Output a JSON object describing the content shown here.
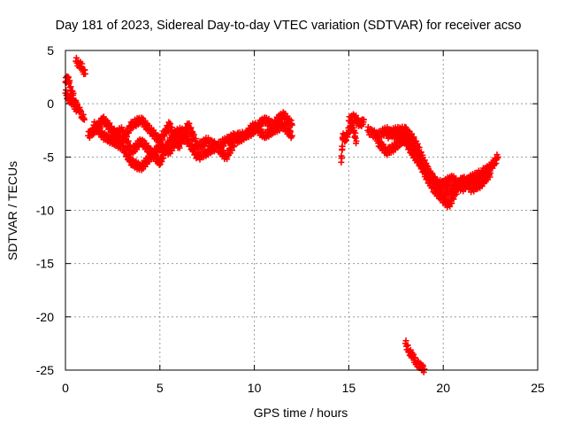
{
  "chart_data": {
    "type": "scatter",
    "title": "Day 181 of 2023, Sidereal Day-to-day VTEC variation (SDTVAR) for receiver acso",
    "xlabel": "GPS time / hours",
    "ylabel": "SDTVAR / TECUs",
    "xlim": [
      0,
      25
    ],
    "ylim": [
      -25,
      5
    ],
    "xticks": [
      0,
      5,
      10,
      15,
      20,
      25
    ],
    "yticks": [
      5,
      0,
      -5,
      -10,
      -15,
      -20,
      -25
    ],
    "grid": true,
    "marker": "+",
    "series": [
      {
        "name": "SDTVAR",
        "color": "#ff0000",
        "segments": [
          {
            "x": [
              0.0,
              0.1,
              0.2,
              0.3,
              0.4,
              0.5,
              0.6,
              0.7,
              0.8,
              0.9,
              1.0
            ],
            "y": [
              2.0,
              2.5,
              2.0,
              1.2,
              0.8,
              0.3,
              -0.2,
              -0.5,
              -0.8,
              -1.2,
              -1.5
            ]
          },
          {
            "x": [
              0.0,
              0.2,
              0.4,
              0.6
            ],
            "y": [
              1.0,
              0.5,
              0.0,
              -0.5
            ]
          },
          {
            "x": [
              0.55,
              0.7,
              0.85,
              0.95,
              1.05
            ],
            "y": [
              4.0,
              3.8,
              3.5,
              3.2,
              2.8
            ]
          },
          {
            "x": [
              1.2,
              1.5,
              2.0,
              2.5,
              3.0,
              3.5,
              4.0,
              4.5,
              5.0,
              5.5,
              6.0,
              6.5,
              7.0,
              7.5,
              8.0,
              8.5,
              9.0,
              9.5,
              10.0,
              10.5,
              11.0,
              11.5,
              12.0
            ],
            "y": [
              -3.0,
              -2.5,
              -1.5,
              -2.5,
              -3.5,
              -2.0,
              -1.5,
              -2.5,
              -3.5,
              -2.0,
              -4.0,
              -2.0,
              -4.0,
              -3.5,
              -4.0,
              -3.5,
              -3.0,
              -3.0,
              -2.5,
              -1.5,
              -2.0,
              -1.0,
              -2.0
            ]
          },
          {
            "x": [
              1.5,
              2.0,
              2.5,
              3.0,
              3.5,
              4.0,
              4.5,
              5.0,
              5.5,
              6.0,
              6.5,
              7.0,
              7.5,
              8.0,
              8.5,
              9.0,
              9.5,
              10.0,
              10.5,
              11.0,
              11.5,
              12.0
            ],
            "y": [
              -2.0,
              -3.0,
              -3.5,
              -4.0,
              -5.5,
              -6.0,
              -5.0,
              -4.0,
              -4.5,
              -3.0,
              -3.5,
              -5.0,
              -4.5,
              -4.0,
              -5.0,
              -3.5,
              -3.0,
              -2.0,
              -3.0,
              -2.5,
              -2.0,
              -3.0
            ]
          },
          {
            "x": [
              2.5,
              3.0,
              3.5,
              4.0,
              4.5,
              5.0,
              5.5,
              6.0,
              6.5
            ],
            "y": [
              -3.0,
              -2.5,
              -4.5,
              -3.5,
              -4.5,
              -5.5,
              -3.5,
              -2.5,
              -3.0
            ]
          },
          {
            "x": [
              14.6,
              14.7,
              14.8,
              15.0,
              15.2,
              15.4
            ],
            "y": [
              -5.5,
              -2.8,
              -3.5,
              -2.5,
              -2.0,
              -3.5
            ]
          },
          {
            "x": [
              15.0,
              15.3,
              15.6,
              15.8
            ],
            "y": [
              -1.6,
              -1.2,
              -2.0,
              -1.5
            ]
          },
          {
            "x": [
              16.0,
              16.5,
              17.0,
              17.5,
              18.0,
              18.5,
              19.0,
              19.5,
              20.0,
              20.5,
              21.0,
              21.5,
              22.0,
              22.5,
              22.9
            ],
            "y": [
              -2.5,
              -3.0,
              -2.5,
              -3.0,
              -3.5,
              -5.0,
              -6.0,
              -7.0,
              -8.5,
              -8.0,
              -7.5,
              -7.0,
              -6.5,
              -6.0,
              -5.0
            ]
          },
          {
            "x": [
              16.5,
              17.0,
              17.5,
              18.0,
              18.5,
              19.0,
              19.5,
              20.0,
              20.3,
              20.6,
              21.0,
              21.5,
              22.0,
              22.5
            ],
            "y": [
              -3.5,
              -4.5,
              -4.0,
              -3.0,
              -4.5,
              -6.5,
              -8.0,
              -9.0,
              -9.5,
              -8.5,
              -7.0,
              -8.0,
              -7.5,
              -6.5
            ]
          },
          {
            "x": [
              17.0,
              17.5,
              18.0,
              18.5,
              19.0,
              19.5,
              20.0,
              20.5,
              21.0,
              21.5,
              22.0,
              22.5
            ],
            "y": [
              -3.0,
              -2.5,
              -2.5,
              -3.5,
              -5.5,
              -7.5,
              -7.5,
              -7.0,
              -8.0,
              -7.0,
              -7.5,
              -6.0
            ]
          },
          {
            "x": [
              18.0,
              18.2,
              18.4,
              18.6,
              18.8,
              19.0
            ],
            "y": [
              -22.5,
              -23.2,
              -23.8,
              -24.3,
              -24.7,
              -24.9
            ]
          }
        ]
      }
    ]
  }
}
